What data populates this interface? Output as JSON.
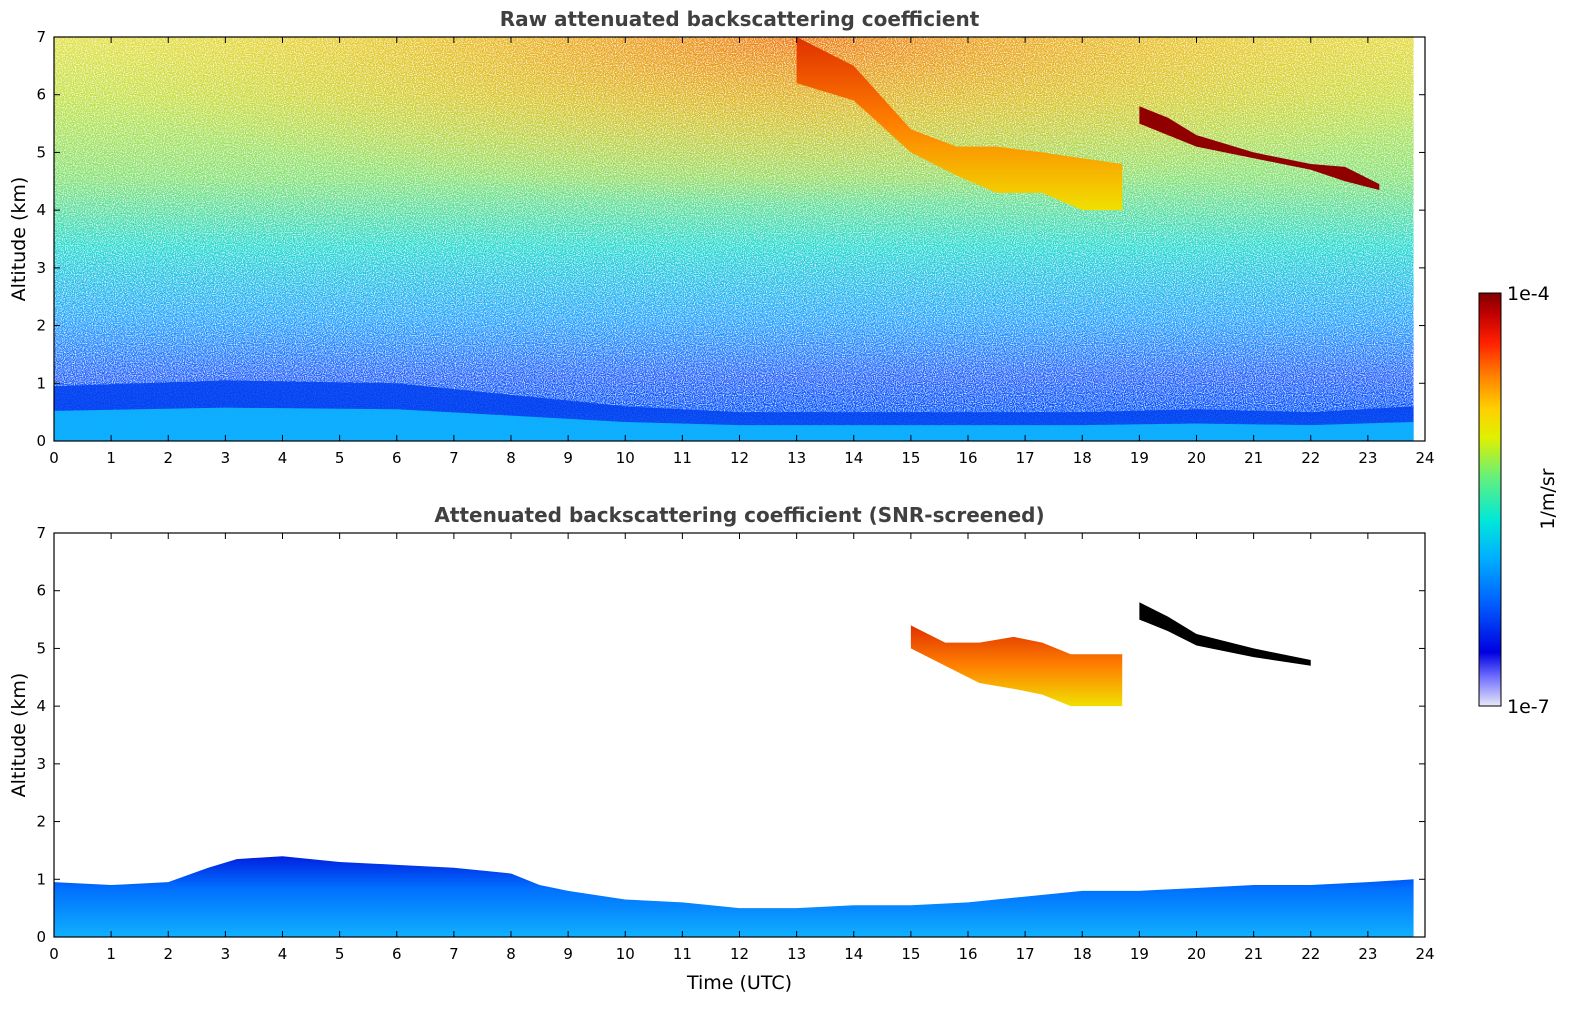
{
  "chart_data": [
    {
      "type": "heatmap",
      "title": "Raw attenuated backscattering coefficient",
      "xlabel": "",
      "ylabel": "Altitude (km)",
      "xlim": [
        0,
        24
      ],
      "ylim": [
        0,
        7
      ],
      "x_ticks": [
        "0",
        "1",
        "2",
        "3",
        "4",
        "5",
        "6",
        "7",
        "8",
        "9",
        "10",
        "11",
        "12",
        "13",
        "14",
        "15",
        "16",
        "17",
        "18",
        "19",
        "20",
        "21",
        "22",
        "23",
        "24"
      ],
      "y_ticks": [
        "0",
        "1",
        "2",
        "3",
        "4",
        "5",
        "6",
        "7"
      ],
      "data_extent_x": [
        0,
        23.8
      ],
      "features": [
        {
          "kind": "boundary_layer",
          "time": [
            0,
            3,
            6,
            8,
            10,
            12,
            14,
            16,
            18,
            20,
            22,
            23.8
          ],
          "top_km": [
            0.95,
            1.05,
            1.0,
            0.8,
            0.6,
            0.5,
            0.5,
            0.5,
            0.5,
            0.55,
            0.5,
            0.6
          ]
        },
        {
          "kind": "cloud",
          "time": [
            13.0,
            14.0,
            15.0,
            15.8,
            16.5,
            17.3,
            18.0,
            18.7
          ],
          "base_km": [
            6.2,
            5.9,
            5.0,
            4.6,
            4.3,
            4.3,
            4.0,
            4.0
          ],
          "top_km": [
            7.0,
            6.5,
            5.4,
            5.1,
            5.1,
            5.0,
            4.9,
            4.8
          ]
        },
        {
          "kind": "cloud",
          "time": [
            19.0,
            19.5,
            20.0,
            21.0,
            22.0,
            22.6,
            23.2
          ],
          "base_km": [
            5.5,
            5.3,
            5.1,
            4.9,
            4.7,
            4.5,
            4.35
          ],
          "top_km": [
            5.8,
            5.6,
            5.3,
            5.0,
            4.8,
            4.75,
            4.45
          ]
        }
      ]
    },
    {
      "type": "heatmap",
      "title": "Attenuated backscattering coefficient (SNR-screened)",
      "xlabel": "Time (UTC)",
      "ylabel": "Altitude (km)",
      "xlim": [
        0,
        24
      ],
      "ylim": [
        0,
        7
      ],
      "x_ticks": [
        "0",
        "1",
        "2",
        "3",
        "4",
        "5",
        "6",
        "7",
        "8",
        "9",
        "10",
        "11",
        "12",
        "13",
        "14",
        "15",
        "16",
        "17",
        "18",
        "19",
        "20",
        "21",
        "22",
        "23",
        "24"
      ],
      "y_ticks": [
        "0",
        "1",
        "2",
        "3",
        "4",
        "5",
        "6",
        "7"
      ],
      "data_extent_x": [
        0,
        23.8
      ],
      "features": [
        {
          "kind": "boundary_layer",
          "time": [
            0,
            1,
            2,
            2.7,
            3.2,
            4,
            5,
            6,
            7,
            8,
            8.5,
            9,
            10,
            11,
            12,
            13,
            14,
            15,
            16,
            17,
            18,
            19,
            20,
            21,
            22,
            23,
            23.8
          ],
          "top_km": [
            0.95,
            0.9,
            0.95,
            1.2,
            1.35,
            1.4,
            1.3,
            1.25,
            1.2,
            1.1,
            0.9,
            0.8,
            0.65,
            0.6,
            0.5,
            0.5,
            0.55,
            0.55,
            0.6,
            0.7,
            0.8,
            0.8,
            0.85,
            0.9,
            0.9,
            0.95,
            1.0
          ]
        },
        {
          "kind": "cloud",
          "time": [
            15.0,
            15.6,
            16.2,
            16.8,
            17.3,
            17.8,
            18.3,
            18.7
          ],
          "base_km": [
            5.0,
            4.7,
            4.4,
            4.3,
            4.2,
            4.0,
            4.0,
            4.0
          ],
          "top_km": [
            5.4,
            5.1,
            5.1,
            5.2,
            5.1,
            4.9,
            4.9,
            4.9
          ]
        },
        {
          "kind": "cloud",
          "time": [
            19.0,
            19.5,
            20.0,
            21.0,
            22.0
          ],
          "base_km": [
            5.5,
            5.3,
            5.05,
            4.85,
            4.7
          ],
          "top_km": [
            5.8,
            5.55,
            5.25,
            5.0,
            4.8
          ]
        }
      ]
    }
  ],
  "colorbar": {
    "label": "1/m/sr",
    "min_label": "1e-7",
    "max_label": "1e-4",
    "scale": "log",
    "range": [
      1e-07,
      0.0001
    ],
    "colormap": [
      "#e8e8f8",
      "#0000c8",
      "#0050ff",
      "#00a0ff",
      "#00e0e0",
      "#40f0a0",
      "#a0f040",
      "#f0f000",
      "#ffa000",
      "#ff4000",
      "#c00000",
      "#800000"
    ]
  }
}
